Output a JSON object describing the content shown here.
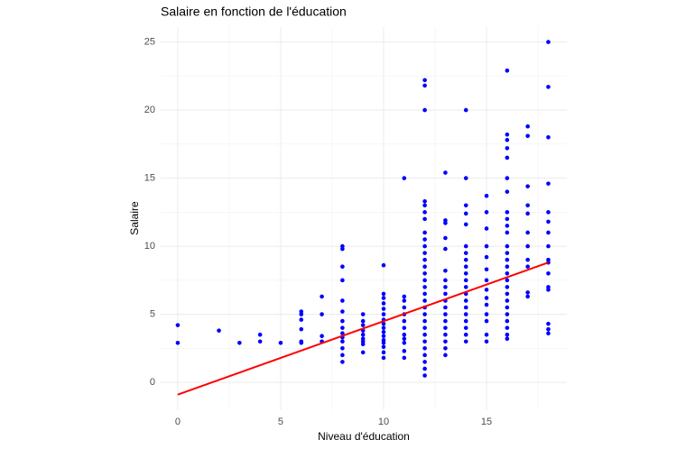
{
  "chart_data": {
    "type": "scatter",
    "title": "Salaire en fonction de l'éducation",
    "xlabel": "Niveau d'éducation",
    "ylabel": "Salaire",
    "xlim": [
      -0.83,
      18.9
    ],
    "ylim": [
      -2.05,
      26.1
    ],
    "xticks": [
      0,
      5,
      10,
      15
    ],
    "yticks": [
      0,
      5,
      10,
      15,
      20,
      25
    ],
    "minor_xticks": [
      2.5,
      7.5,
      12.5,
      17.5
    ],
    "minor_yticks": [
      2.5,
      7.5,
      12.5,
      17.5,
      22.5
    ],
    "grid": true,
    "series": [
      {
        "color": "#0000ff",
        "x": [
          0,
          0,
          2,
          3,
          4,
          4,
          5,
          6,
          6,
          6,
          6,
          6,
          6,
          7,
          7,
          7,
          7,
          8,
          8,
          8,
          8,
          8,
          8,
          8,
          8,
          8,
          8,
          8,
          8,
          8,
          8,
          9,
          9,
          9,
          9,
          9,
          9,
          9,
          9,
          9,
          10,
          10,
          10,
          10,
          10,
          10,
          10,
          10,
          10,
          10,
          10,
          10,
          10,
          10,
          10,
          10,
          11,
          11,
          11,
          11,
          11,
          11,
          11,
          11,
          11,
          11,
          11,
          11,
          12,
          12,
          12,
          12,
          12,
          12,
          12,
          12,
          12,
          12,
          12,
          12,
          12,
          12,
          12,
          12,
          12,
          12,
          12,
          12,
          12,
          12,
          12,
          12,
          12,
          12,
          12,
          12,
          12,
          13,
          13,
          13,
          13,
          13,
          13,
          13,
          13,
          13,
          13,
          13,
          13,
          13,
          13,
          13,
          13,
          13,
          13,
          14,
          14,
          14,
          14,
          14,
          14,
          14,
          14,
          14,
          14,
          14,
          14,
          14,
          14,
          14,
          14,
          14,
          14,
          14,
          14,
          15,
          15,
          15,
          15,
          15,
          15,
          15,
          15,
          15,
          15,
          15,
          15,
          15,
          15,
          16,
          16,
          16,
          16,
          16,
          16,
          16,
          16,
          16,
          16,
          16,
          16,
          16,
          16,
          16,
          16,
          16,
          16,
          16,
          16,
          16,
          16,
          16,
          16,
          16,
          16,
          17,
          17,
          17,
          17,
          17,
          17,
          17,
          17,
          17,
          17,
          17,
          18,
          18,
          18,
          18,
          18,
          18,
          18,
          18,
          18,
          18,
          18,
          18,
          18,
          18,
          18,
          18
        ],
        "values": [
          4.2,
          2.9,
          3.8,
          2.9,
          3.0,
          3.5,
          2.9,
          5.2,
          5.0,
          4.6,
          3.9,
          3.0,
          2.9,
          6.3,
          5.0,
          3.4,
          3.0,
          10.0,
          9.8,
          8.5,
          7.5,
          6.0,
          5.2,
          4.5,
          4.0,
          3.6,
          3.3,
          3.0,
          2.5,
          2.0,
          1.5,
          5.0,
          4.5,
          4.2,
          3.8,
          3.5,
          3.2,
          3.0,
          2.8,
          2.2,
          8.6,
          6.5,
          6.2,
          5.8,
          5.4,
          5.0,
          4.6,
          4.3,
          4.0,
          3.7,
          3.4,
          3.1,
          2.9,
          2.6,
          2.2,
          1.8,
          15.0,
          6.3,
          6.0,
          5.5,
          5.0,
          4.5,
          4.0,
          3.5,
          3.2,
          2.9,
          2.3,
          1.8,
          22.2,
          21.8,
          20.0,
          13.3,
          13.0,
          12.5,
          12.0,
          11.0,
          10.5,
          10.0,
          9.5,
          9.0,
          8.5,
          8.0,
          7.5,
          7.0,
          6.5,
          6.0,
          5.5,
          5.0,
          4.5,
          4.0,
          3.5,
          3.0,
          2.5,
          2.0,
          1.5,
          1.0,
          0.5,
          15.4,
          11.9,
          11.7,
          10.6,
          9.8,
          8.2,
          7.5,
          7.0,
          6.5,
          6.0,
          5.5,
          5.0,
          4.5,
          4.0,
          3.5,
          3.0,
          2.5,
          2.0,
          20.0,
          15.0,
          13.0,
          12.4,
          11.6,
          10.0,
          9.5,
          9.0,
          8.5,
          8.0,
          7.5,
          7.0,
          6.5,
          6.0,
          5.5,
          5.0,
          4.5,
          4.0,
          3.5,
          3.0,
          13.7,
          12.5,
          11.3,
          10.0,
          9.2,
          8.3,
          7.5,
          6.8,
          6.2,
          5.7,
          5.0,
          4.5,
          3.5,
          3.0,
          22.9,
          18.2,
          17.8,
          17.2,
          16.5,
          15.0,
          14.0,
          12.5,
          12.0,
          11.5,
          11.0,
          10.0,
          9.5,
          9.0,
          8.5,
          8.0,
          7.5,
          7.0,
          6.5,
          6.0,
          5.5,
          5.0,
          4.5,
          4.0,
          3.5,
          3.2,
          18.8,
          18.1,
          14.4,
          13.0,
          12.4,
          11.0,
          10.0,
          9.0,
          8.5,
          6.6,
          6.3,
          25.0,
          21.7,
          18.0,
          14.6,
          12.5,
          11.8,
          11.0,
          10.0,
          9.0,
          8.8,
          8.0,
          7.0,
          6.8,
          4.3,
          3.9,
          3.6
        ]
      }
    ],
    "fit_line": {
      "color": "#ff0000",
      "x": [
        0,
        18
      ],
      "values": [
        -0.9,
        8.8
      ]
    }
  }
}
